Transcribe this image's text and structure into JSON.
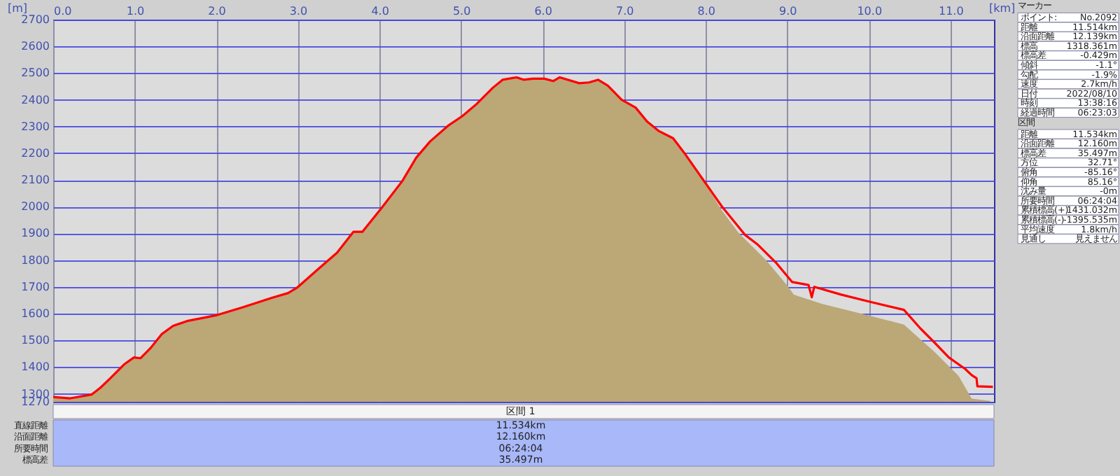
{
  "chart_data": [
    {
      "type": "area",
      "xlabel": "[km]",
      "ylabel": "[m]",
      "xlim": [
        0,
        11.534
      ],
      "ylim": [
        1270,
        2700
      ],
      "xticks": [
        {
          "value": 0,
          "label": "0.0"
        },
        {
          "value": 1,
          "label": "1.0"
        },
        {
          "value": 2,
          "label": "2.0"
        },
        {
          "value": 3,
          "label": "3.0"
        },
        {
          "value": 4,
          "label": "4.0"
        },
        {
          "value": 5,
          "label": "5.0"
        },
        {
          "value": 6,
          "label": "6.0"
        },
        {
          "value": 7,
          "label": "7.0"
        },
        {
          "value": 8,
          "label": "8.0"
        },
        {
          "value": 9,
          "label": "9.0"
        },
        {
          "value": 10,
          "label": "10.0"
        },
        {
          "value": 11,
          "label": "11.0"
        }
      ],
      "yticks": [
        1270,
        1300,
        1400,
        1500,
        1600,
        1700,
        1800,
        1900,
        2000,
        2100,
        2200,
        2300,
        2400,
        2500,
        2600,
        2700
      ],
      "grid": true,
      "series": [
        {
          "color": "#bca777",
          "x": [
            0,
            0.21,
            0.47,
            0.58,
            0.7,
            0.87,
            0.99,
            1.07,
            1.19,
            1.33,
            1.47,
            1.64,
            1.99,
            2.33,
            2.68,
            2.88,
            2.99,
            3.25,
            3.48,
            3.68,
            3.79,
            4.02,
            4.28,
            4.45,
            4.62,
            4.85,
            5.02,
            5.19,
            5.39,
            5.51,
            5.68,
            5.77,
            5.88,
            6.02,
            6.13,
            6.21,
            6.45,
            6.57,
            6.68,
            6.8,
            6.97,
            7.14,
            7.28,
            7.42,
            7.6,
            7.74,
            7.94,
            8.2,
            8.4,
            8.74,
            9.0,
            9.08,
            9.43,
            10.0,
            10.43,
            10.81,
            11.1,
            11.26,
            11.49
          ],
          "values": [
            1288,
            1283,
            1297,
            1323,
            1358,
            1410,
            1436,
            1433,
            1470,
            1523,
            1554,
            1572,
            1593,
            1624,
            1659,
            1677,
            1697,
            1767,
            1828,
            1906,
            1906,
            1993,
            2096,
            2183,
            2244,
            2305,
            2340,
            2384,
            2445,
            2475,
            2484,
            2475,
            2479,
            2479,
            2470,
            2484,
            2462,
            2465,
            2475,
            2453,
            2400,
            2371,
            2319,
            2284,
            2256,
            2200,
            2113,
            1985,
            1903,
            1800,
            1705,
            1671,
            1636,
            1593,
            1559,
            1455,
            1367,
            1282,
            1273
          ]
        },
        {
          "type": "line",
          "color": "#ff0000",
          "x": [
            0,
            0.21,
            0.47,
            0.58,
            0.7,
            0.87,
            0.99,
            1.07,
            1.19,
            1.33,
            1.47,
            1.64,
            1.99,
            2.33,
            2.68,
            2.88,
            2.99,
            3.25,
            3.48,
            3.68,
            3.79,
            4.02,
            4.28,
            4.45,
            4.62,
            4.85,
            5.02,
            5.19,
            5.39,
            5.51,
            5.68,
            5.77,
            5.88,
            6.02,
            6.13,
            6.21,
            6.45,
            6.57,
            6.68,
            6.8,
            6.97,
            7.14,
            7.28,
            7.42,
            7.6,
            7.74,
            7.94,
            8.2,
            8.48,
            8.63,
            8.86,
            9.06,
            9.26,
            9.3,
            9.33,
            9.66,
            10.0,
            10.43,
            10.63,
            10.81,
            10.98,
            11.18,
            11.26,
            11.32,
            11.33,
            11.52
          ],
          "values": [
            1288,
            1283,
            1297,
            1323,
            1358,
            1410,
            1436,
            1433,
            1470,
            1523,
            1554,
            1572,
            1593,
            1624,
            1659,
            1677,
            1697,
            1767,
            1828,
            1906,
            1906,
            1993,
            2096,
            2183,
            2244,
            2305,
            2340,
            2384,
            2445,
            2475,
            2484,
            2475,
            2479,
            2479,
            2470,
            2484,
            2462,
            2465,
            2475,
            2453,
            2400,
            2371,
            2319,
            2284,
            2256,
            2200,
            2113,
            2000,
            1895,
            1860,
            1791,
            1718,
            1707,
            1661,
            1700,
            1671,
            1645,
            1614,
            1545,
            1490,
            1436,
            1393,
            1370,
            1358,
            1328,
            1326
          ]
        }
      ],
      "annotations": [
        "区間 1",
        "直線距離",
        "11.534km",
        "沿面距離",
        "12.160km",
        "所要時間",
        "06:24:04",
        "標高差",
        "35.497m"
      ]
    },
    {
      "type": "other",
      "annotations": [
        "マーカー",
        "ポイント:",
        "No.2092",
        "距離",
        "11.514km",
        "沿面距離",
        "12.139km",
        "標高",
        "1318.361m",
        "標高差",
        "-0.429m",
        "傾斜",
        "-1.1°",
        "勾配",
        "-1.9%",
        "速度",
        "2.7km/h",
        "日付",
        "2022/08/10",
        "時刻",
        "13:38:16",
        "経過時間",
        "06:23:03",
        "区間",
        "距離",
        "11.534km",
        "沿面距離",
        "12.160m",
        "標高差",
        "35.497m",
        "方位",
        "32.71°",
        "俯角",
        "-85.16°",
        "仰角",
        "85.16°",
        "沈み量",
        "-0m",
        "所要時間",
        "06:24:04",
        "累積標高(+)",
        "1431.032m",
        "累積標高(-)",
        "-1395.535m",
        "平均速度",
        "1.8km/h",
        "見通し",
        "見えません"
      ]
    }
  ]
}
